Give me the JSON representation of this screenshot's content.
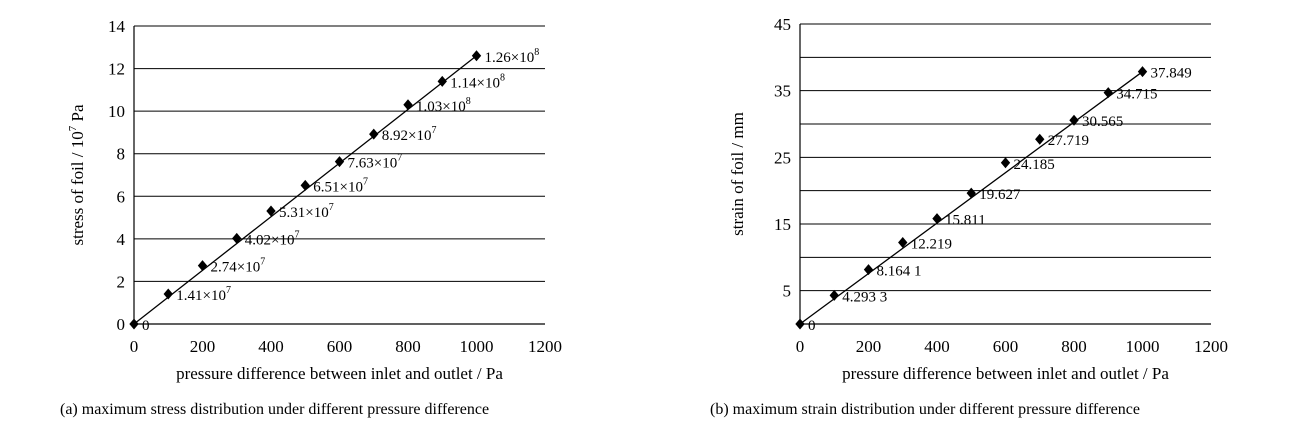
{
  "chart_data": [
    {
      "type": "scatter",
      "fit_line": true,
      "ylabel_parts": {
        "prefix": "stress of foil / 10",
        "sup": "7",
        "suffix": " Pa"
      },
      "xlabel": "pressure difference between inlet and outlet / Pa",
      "caption": "(a) maximum stress distribution under different pressure difference",
      "xlim": [
        0,
        1200
      ],
      "ylim": [
        0,
        14
      ],
      "xticks": [
        "0",
        "200",
        "400",
        "600",
        "800",
        "1000",
        "1200"
      ],
      "yticks": [
        "0",
        "2",
        "4",
        "6",
        "8",
        "10",
        "12",
        "14"
      ],
      "grid": "horizontal",
      "marker": "diamond",
      "series": [
        {
          "x": [
            0,
            100,
            200,
            300,
            400,
            500,
            600,
            700,
            800,
            900,
            1000
          ],
          "y": [
            0,
            1.41,
            2.74,
            4.02,
            5.31,
            6.51,
            7.63,
            8.92,
            10.3,
            11.4,
            12.6
          ]
        }
      ],
      "data_labels": [
        {
          "mantissa": "0",
          "exp": ""
        },
        {
          "mantissa": "1.41×10",
          "exp": "7"
        },
        {
          "mantissa": "2.74×10",
          "exp": "7"
        },
        {
          "mantissa": "4.02×10",
          "exp": "7"
        },
        {
          "mantissa": "5.31×10",
          "exp": "7"
        },
        {
          "mantissa": "6.51×10",
          "exp": "7"
        },
        {
          "mantissa": "7.63×10",
          "exp": "7"
        },
        {
          "mantissa": "8.92×10",
          "exp": "7"
        },
        {
          "mantissa": "1.03×10",
          "exp": "8"
        },
        {
          "mantissa": "1.14×10",
          "exp": "8"
        },
        {
          "mantissa": "1.26×10",
          "exp": "8"
        }
      ]
    },
    {
      "type": "scatter",
      "fit_line": true,
      "ylabel": "strain of foil / mm",
      "xlabel": "pressure difference between inlet and outlet / Pa",
      "caption": "(b) maximum strain distribution under different pressure difference",
      "xlim": [
        0,
        1200
      ],
      "ylim": [
        0,
        45
      ],
      "xticks": [
        "0",
        "200",
        "400",
        "600",
        "800",
        "1000",
        "1200"
      ],
      "yticks": [
        "5",
        "15",
        "25",
        "35",
        "45"
      ],
      "grid": "horizontal (every 5 units)",
      "marker": "diamond",
      "series": [
        {
          "x": [
            0,
            100,
            200,
            300,
            400,
            500,
            600,
            700,
            800,
            900,
            1000
          ],
          "y": [
            0,
            4.2933,
            8.1641,
            12.219,
            15.811,
            19.627,
            24.185,
            27.719,
            30.565,
            34.715,
            37.849
          ]
        }
      ],
      "data_labels": [
        "0",
        "4.293 3",
        "8.164 1",
        "12.219",
        "15.811",
        "19.627",
        "24.185",
        "27.719",
        "30.565",
        "34.715",
        "37.849"
      ]
    }
  ]
}
